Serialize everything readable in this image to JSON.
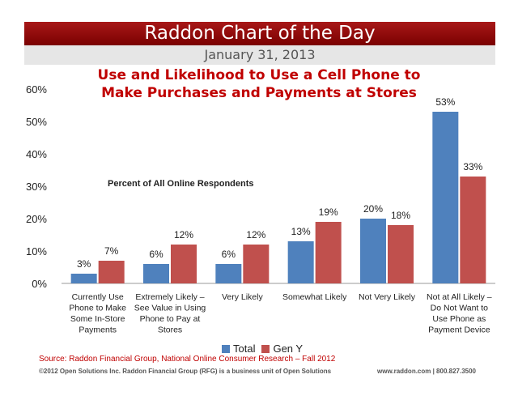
{
  "header": {
    "banner": "Raddon Chart of the Day",
    "date": "January 31, 2013"
  },
  "chart_data": {
    "type": "bar",
    "title_line1": "Use and Likelihood to Use a Cell Phone to",
    "title_line2": "Make Purchases and Payments at Stores",
    "annotation": "Percent of All Online Respondents",
    "categories": [
      [
        "Currently Use",
        "Phone to Make",
        "Some In-Store",
        "Payments"
      ],
      [
        "Extremely Likely –",
        "See Value in Using",
        "Phone to Pay at",
        "Stores"
      ],
      [
        "Very Likely"
      ],
      [
        "Somewhat Likely"
      ],
      [
        "Not Very Likely"
      ],
      [
        "Not at All Likely –",
        "Do Not Want to",
        "Use Phone as",
        "Payment Device"
      ]
    ],
    "series": [
      {
        "name": "Total",
        "color": "#4f81bd",
        "values": [
          3,
          6,
          6,
          13,
          20,
          53
        ],
        "labels": [
          "3%",
          "6%",
          "6%",
          "13%",
          "20%",
          "53%"
        ]
      },
      {
        "name": "Gen Y",
        "color": "#c0504d",
        "values": [
          7,
          12,
          12,
          19,
          18,
          33
        ],
        "labels": [
          "7%",
          "12%",
          "12%",
          "19%",
          "18%",
          "33%"
        ]
      }
    ],
    "ylim": [
      0,
      60
    ],
    "yticks": [
      0,
      10,
      20,
      30,
      40,
      50,
      60
    ],
    "ytick_labels": [
      "0%",
      "10%",
      "20%",
      "30%",
      "40%",
      "50%",
      "60%"
    ],
    "grid": false,
    "legend_position": "bottom"
  },
  "footer": {
    "source": "Source: Raddon Financial Group, National Online Consumer Research – Fall 2012",
    "copyright": "©2012 Open Solutions Inc.  Raddon Financial Group (RFG) is a business unit of Open Solutions",
    "contact": "www.raddon.com  |  800.827.3500"
  }
}
